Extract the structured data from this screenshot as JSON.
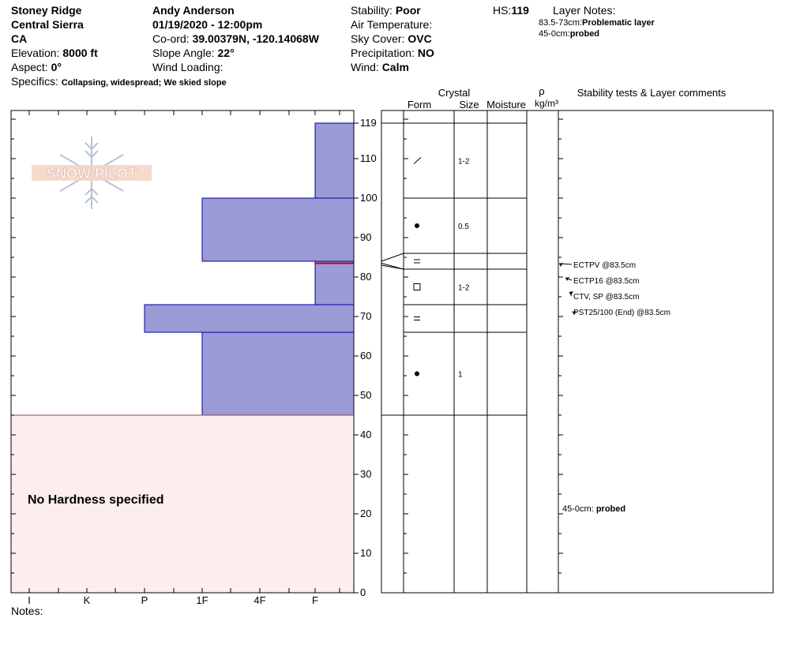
{
  "header": {
    "location_name": "Stoney Ridge",
    "range": "Central Sierra",
    "state": "CA",
    "elevation_label": "Elevation:",
    "elevation_value": "8000 ft",
    "aspect_label": "Aspect:",
    "aspect_value": "0°",
    "specifics_label": "Specifics:",
    "specifics_value": "Collapsing, widespread; We skied slope",
    "observer": "Andy Anderson",
    "datetime": "01/19/2020 - 12:00pm",
    "coord_label": "Co-ord:",
    "coord_value": "39.00379N, -120.14068W",
    "slope_label": "Slope Angle:",
    "slope_value": "22°",
    "wind_loading_label": "Wind Loading:",
    "wind_loading_value": "",
    "stability_label": "Stability:",
    "stability_value": "Poor",
    "air_temp_label": "Air Temperature:",
    "air_temp_value": "",
    "sky_label": "Sky Cover:",
    "sky_value": "OVC",
    "precip_label": "Precipitation:",
    "precip_value": "NO",
    "wind_label": "Wind:",
    "wind_value": "Calm",
    "hs_label": "HS:",
    "hs_value": "119",
    "layer_notes_label": "Layer Notes:",
    "layer_notes": [
      {
        "range": "83.5-73cm:",
        "text": "Problematic layer"
      },
      {
        "range": "45-0cm:",
        "text": "probed"
      }
    ]
  },
  "logo_text": "SNOW PILOT",
  "columns": {
    "crystal": "Crystal",
    "form": "Form",
    "size": "Size",
    "moisture": "Moisture",
    "rho": "ρ",
    "density_unit": "kg/m³",
    "stability_comments": "Stability tests & Layer comments"
  },
  "no_hardness_text": "No Hardness specified",
  "notes_label": "Notes:",
  "colors": {
    "hardness_fill": "#9b9bd6",
    "hardness_stroke": "#0000aa",
    "no_hardness_fill": "#fdeeee",
    "no_hardness_stroke": "#8b4a4a",
    "problem_line": "#b0002a"
  },
  "chart_data": {
    "type": "snow-profile",
    "y_axis": {
      "min": 0,
      "max": 120,
      "ticks": [
        0,
        10,
        20,
        30,
        40,
        50,
        60,
        70,
        80,
        90,
        100,
        110,
        119
      ]
    },
    "hardness_scale": [
      "I",
      "K",
      "P",
      "1F",
      "4F",
      "F"
    ],
    "hardness_layers": [
      {
        "top": 119,
        "bottom": 100,
        "hardness": "F"
      },
      {
        "top": 100,
        "bottom": 84,
        "hardness": "1F"
      },
      {
        "top": 84,
        "bottom": 83.5,
        "hardness": "F"
      },
      {
        "top": 83.5,
        "bottom": 73,
        "hardness": "F"
      },
      {
        "top": 73,
        "bottom": 66,
        "hardness": "P"
      },
      {
        "top": 66,
        "bottom": 45,
        "hardness": "1F"
      }
    ],
    "no_hardness_range": {
      "top": 45,
      "bottom": 0
    },
    "problem_layer_depth": 83.5,
    "layer_boundaries": [
      119,
      100,
      86,
      82,
      73,
      66,
      45
    ],
    "crystals": [
      {
        "depth": 109.5,
        "form": "/",
        "size": "1-2"
      },
      {
        "depth": 93,
        "form": "●",
        "size": "0.5"
      },
      {
        "depth": 84,
        "form": "=",
        "size": ""
      },
      {
        "depth": 77.5,
        "form": "□",
        "size": "1-2"
      },
      {
        "depth": 69.5,
        "form": "=",
        "size": ""
      },
      {
        "depth": 55.5,
        "form": "●",
        "size": "1"
      }
    ],
    "stability_tests": [
      {
        "label": "ECTPV @83.5cm",
        "depth": 83.5
      },
      {
        "label": "ECTP16 @83.5cm",
        "depth": 83.5
      },
      {
        "label": "CTV, SP @83.5cm",
        "depth": 83.5
      },
      {
        "label": "PST25/100 (End) @83.5cm",
        "depth": 83.5
      }
    ],
    "layer_comment": {
      "range": "45-0cm:",
      "text": "probed",
      "depth": 22.5
    }
  }
}
